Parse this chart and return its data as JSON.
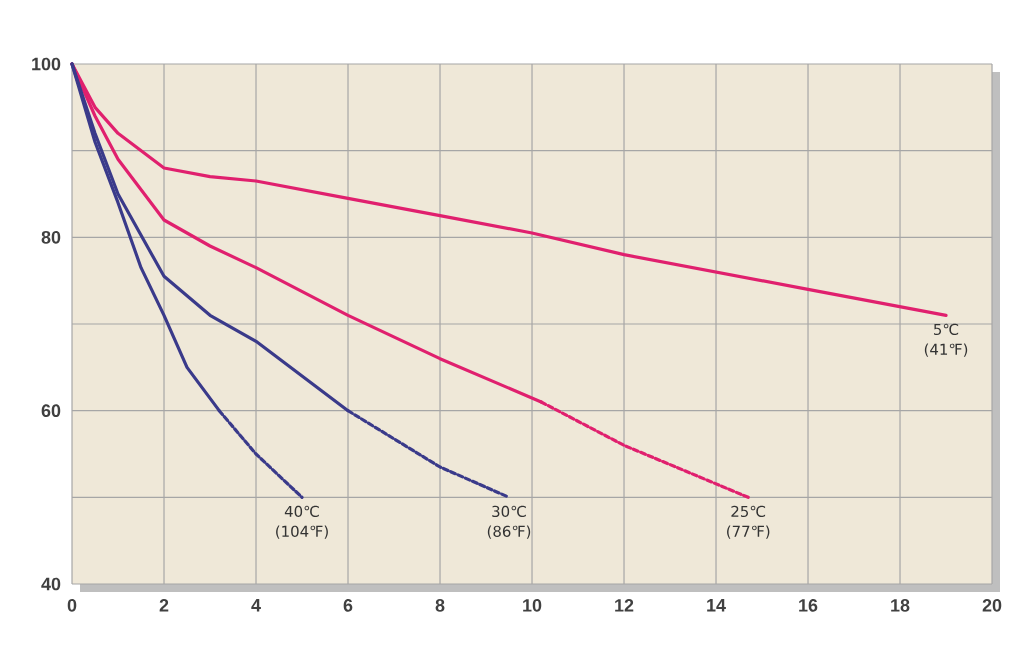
{
  "chart_data": {
    "type": "line",
    "xlim": [
      0,
      20
    ],
    "ylim": [
      40,
      100
    ],
    "xticks": [
      0,
      2,
      4,
      6,
      8,
      10,
      12,
      14,
      16,
      18,
      20
    ],
    "yticks": [
      40,
      {
        "value": 50,
        "label": null
      },
      60,
      {
        "value": 70,
        "label": null
      },
      80,
      {
        "value": 90,
        "label": null
      },
      100
    ],
    "grid": true,
    "marker": "none",
    "series": [
      {
        "name": "5℃ (41℉)",
        "color": "#e0206e",
        "line_style": "solid",
        "x": [
          0,
          0.5,
          1,
          2,
          3,
          4,
          6,
          8,
          10,
          12,
          14,
          16,
          19
        ],
        "values": [
          100,
          95,
          92,
          88,
          87,
          86.5,
          84.5,
          82.5,
          80.5,
          78,
          76,
          74,
          71
        ]
      },
      {
        "color": "#e0206e",
        "line_style": "solid",
        "x": [
          0,
          0.5,
          1,
          2,
          3,
          4,
          6,
          8,
          10.2
        ],
        "values": [
          100,
          94,
          89,
          82,
          79,
          76.5,
          71,
          66,
          61
        ]
      },
      {
        "name": "25℃ (77℉)",
        "color": "#e0206e",
        "line_style": "dashed",
        "x": [
          10.2,
          12,
          14.7
        ],
        "values": [
          61,
          56,
          50
        ]
      },
      {
        "color": "#3a3a8a",
        "line_style": "solid",
        "x": [
          0,
          0.5,
          1,
          2,
          3,
          4,
          5,
          6
        ],
        "values": [
          100,
          92,
          85,
          75.5,
          71,
          68,
          64,
          60
        ]
      },
      {
        "name": "30℃ (86℉)",
        "color": "#3a3a8a",
        "line_style": "dashed",
        "x": [
          6,
          8,
          9.5
        ],
        "values": [
          60,
          53.5,
          50
        ]
      },
      {
        "color": "#3a3a8a",
        "line_style": "solid",
        "x": [
          0,
          0.5,
          1,
          1.5,
          2,
          2.5,
          3.2
        ],
        "values": [
          100,
          91,
          84,
          76.5,
          71,
          65,
          60
        ]
      },
      {
        "name": "40℃ (104℉)",
        "color": "#3a3a8a",
        "line_style": "dashed",
        "x": [
          3.2,
          4,
          5
        ],
        "values": [
          60,
          55,
          50
        ]
      }
    ]
  }
}
